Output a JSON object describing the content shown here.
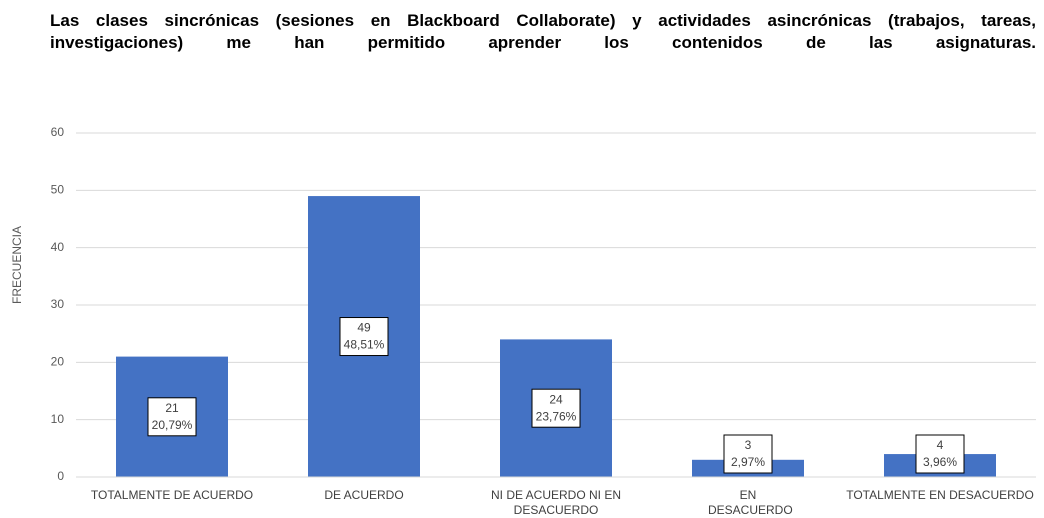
{
  "chart_data": {
    "type": "bar",
    "title": "Las clases sincrónicas (sesiones en Blackboard Collaborate) y actividades asincrónicas (trabajos, tareas, investigaciones) me han permitido aprender los contenidos de las asignaturas.",
    "y_label": "FRECUENCIA",
    "categories": [
      "TOTALMENTE DE ACUERDO",
      "DE ACUERDO",
      "NI DE ACUERDO NI EN DESACUERDO",
      "EN DESACUERDO",
      "TOTALMENTE EN DESACUERDO"
    ],
    "values": [
      21,
      49,
      24,
      3,
      4
    ],
    "percentage_labels": [
      "20,79%",
      "48,51%",
      "23,76%",
      "2,97%",
      "3,96%"
    ],
    "color": "#4472c4",
    "ylim": [
      0,
      60
    ],
    "yticks": [
      0,
      10,
      20,
      30,
      40,
      50,
      60
    ],
    "grid": true
  }
}
